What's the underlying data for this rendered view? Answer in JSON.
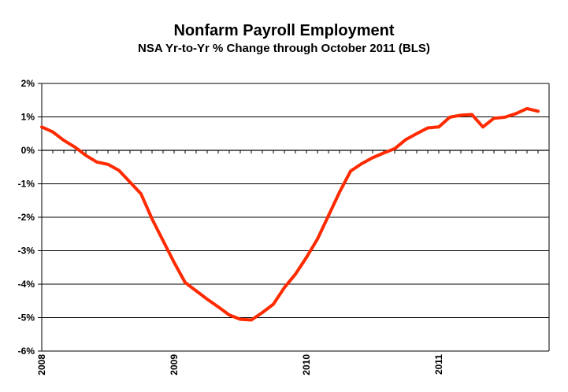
{
  "chart_data": {
    "type": "line",
    "title": "Nonfarm Payroll Employment",
    "subtitle": "NSA Yr-to-Yr % Change through October 2011 (BLS)",
    "xlabel": "",
    "ylabel": "",
    "ylim": [
      -6,
      2
    ],
    "y_ticks": [
      2,
      1,
      0,
      -1,
      -2,
      -3,
      -4,
      -5,
      -6
    ],
    "y_tick_labels": [
      "2%",
      "1%",
      "0%",
      "-1%",
      "-2%",
      "-3%",
      "-4%",
      "-5%",
      "-6%"
    ],
    "x_ticks": [
      2008,
      2009,
      2010,
      2011
    ],
    "x_tick_labels": [
      "2008",
      "2009",
      "2010",
      "2011"
    ],
    "grid": "horizontal",
    "legend": "none",
    "line_color": "#ff2a00",
    "series": [
      {
        "x": [
          "2008-01",
          "2008-02",
          "2008-03",
          "2008-04",
          "2008-05",
          "2008-06",
          "2008-07",
          "2008-08",
          "2008-09",
          "2008-10",
          "2008-11",
          "2008-12",
          "2009-01",
          "2009-02",
          "2009-03",
          "2009-04",
          "2009-05",
          "2009-06",
          "2009-07",
          "2009-08",
          "2009-09",
          "2009-10",
          "2009-11",
          "2009-12",
          "2010-01",
          "2010-02",
          "2010-03",
          "2010-04",
          "2010-05",
          "2010-06",
          "2010-07",
          "2010-08",
          "2010-09",
          "2010-10",
          "2010-11",
          "2010-12",
          "2011-01",
          "2011-02",
          "2011-03",
          "2011-04",
          "2011-05",
          "2011-06",
          "2011-07",
          "2011-08",
          "2011-09",
          "2011-10"
        ],
        "values": [
          0.7,
          0.55,
          0.3,
          0.1,
          -0.15,
          -0.35,
          -0.42,
          -0.6,
          -0.95,
          -1.3,
          -2.05,
          -2.7,
          -3.35,
          -3.95,
          -4.2,
          -4.45,
          -4.68,
          -4.92,
          -5.05,
          -5.07,
          -4.85,
          -4.6,
          -4.1,
          -3.7,
          -3.2,
          -2.65,
          -1.95,
          -1.25,
          -0.62,
          -0.4,
          -0.22,
          -0.08,
          0.05,
          0.32,
          0.5,
          0.67,
          0.7,
          0.99,
          1.05,
          1.07,
          0.7,
          0.96,
          0.99,
          1.1,
          1.25,
          1.17
        ]
      }
    ]
  }
}
